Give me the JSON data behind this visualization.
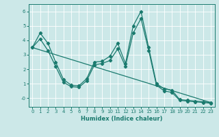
{
  "xlabel": "Humidex (Indice chaleur)",
  "bg_color": "#cce8e8",
  "grid_color": "#ffffff",
  "line_color": "#1a7a6e",
  "xlim": [
    -0.5,
    23.5
  ],
  "ylim": [
    -0.6,
    6.5
  ],
  "yticks": [
    0,
    1,
    2,
    3,
    4,
    5,
    6
  ],
  "ytick_labels": [
    "-0",
    "1",
    "2",
    "3",
    "4",
    "5",
    "6"
  ],
  "xticks": [
    0,
    1,
    2,
    3,
    4,
    5,
    6,
    7,
    8,
    9,
    10,
    11,
    12,
    13,
    14,
    15,
    16,
    17,
    18,
    19,
    20,
    21,
    22,
    23
  ],
  "line1_x": [
    0,
    1,
    2,
    3,
    4,
    5,
    6,
    7,
    8,
    9,
    10,
    11,
    12,
    13,
    14,
    15,
    16,
    17,
    18,
    19,
    20,
    21,
    22,
    23
  ],
  "line1_y": [
    3.5,
    4.5,
    3.8,
    2.5,
    1.3,
    0.9,
    0.85,
    1.35,
    2.5,
    2.55,
    2.9,
    3.8,
    2.4,
    5.0,
    6.0,
    3.5,
    1.0,
    0.65,
    0.55,
    -0.1,
    -0.15,
    -0.2,
    -0.25,
    -0.3
  ],
  "line2_x": [
    0,
    1,
    2,
    3,
    4,
    5,
    6,
    7,
    8,
    9,
    10,
    11,
    12,
    13,
    14,
    15,
    16,
    17,
    18,
    19,
    20,
    21,
    22,
    23
  ],
  "line2_y": [
    3.5,
    4.1,
    3.3,
    2.2,
    1.1,
    0.8,
    0.75,
    1.2,
    2.3,
    2.4,
    2.6,
    3.4,
    2.2,
    4.5,
    5.5,
    3.3,
    0.9,
    0.5,
    0.4,
    -0.15,
    -0.2,
    -0.25,
    -0.3,
    -0.35
  ],
  "line3_x": [
    0,
    23
  ],
  "line3_y": [
    3.5,
    -0.3
  ],
  "marker": "D",
  "markersize": 2.2,
  "linewidth": 0.9,
  "tick_fontsize": 5.0,
  "xlabel_fontsize": 6.0
}
